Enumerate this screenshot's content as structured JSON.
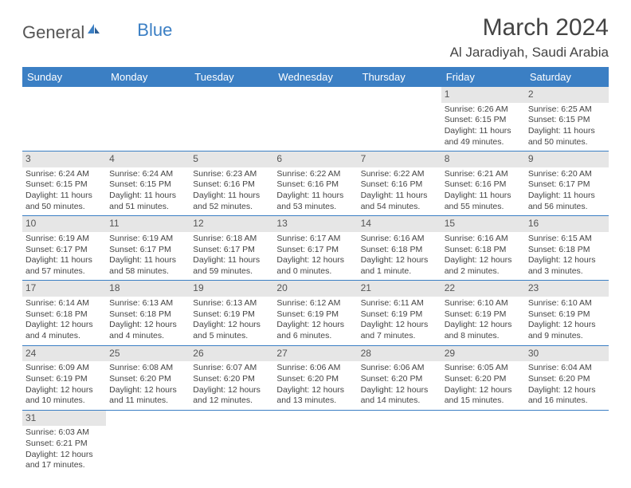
{
  "logo": {
    "text1": "General",
    "text2": "Blue"
  },
  "title": "March 2024",
  "location": "Al Jaradiyah, Saudi Arabia",
  "columns": [
    "Sunday",
    "Monday",
    "Tuesday",
    "Wednesday",
    "Thursday",
    "Friday",
    "Saturday"
  ],
  "colors": {
    "header_bg": "#3b7fc4",
    "header_text": "#ffffff",
    "daynum_bg": "#e6e6e6",
    "border": "#3b7fc4",
    "text": "#444444"
  },
  "fonts": {
    "title_size": 30,
    "location_size": 17,
    "col_header_size": 13,
    "daynum_size": 12,
    "body_size": 10.5
  },
  "weeks": [
    [
      null,
      null,
      null,
      null,
      null,
      {
        "n": "1",
        "sr": "Sunrise: 6:26 AM",
        "ss": "Sunset: 6:15 PM",
        "dl": "Daylight: 11 hours and 49 minutes."
      },
      {
        "n": "2",
        "sr": "Sunrise: 6:25 AM",
        "ss": "Sunset: 6:15 PM",
        "dl": "Daylight: 11 hours and 50 minutes."
      }
    ],
    [
      {
        "n": "3",
        "sr": "Sunrise: 6:24 AM",
        "ss": "Sunset: 6:15 PM",
        "dl": "Daylight: 11 hours and 50 minutes."
      },
      {
        "n": "4",
        "sr": "Sunrise: 6:24 AM",
        "ss": "Sunset: 6:15 PM",
        "dl": "Daylight: 11 hours and 51 minutes."
      },
      {
        "n": "5",
        "sr": "Sunrise: 6:23 AM",
        "ss": "Sunset: 6:16 PM",
        "dl": "Daylight: 11 hours and 52 minutes."
      },
      {
        "n": "6",
        "sr": "Sunrise: 6:22 AM",
        "ss": "Sunset: 6:16 PM",
        "dl": "Daylight: 11 hours and 53 minutes."
      },
      {
        "n": "7",
        "sr": "Sunrise: 6:22 AM",
        "ss": "Sunset: 6:16 PM",
        "dl": "Daylight: 11 hours and 54 minutes."
      },
      {
        "n": "8",
        "sr": "Sunrise: 6:21 AM",
        "ss": "Sunset: 6:16 PM",
        "dl": "Daylight: 11 hours and 55 minutes."
      },
      {
        "n": "9",
        "sr": "Sunrise: 6:20 AM",
        "ss": "Sunset: 6:17 PM",
        "dl": "Daylight: 11 hours and 56 minutes."
      }
    ],
    [
      {
        "n": "10",
        "sr": "Sunrise: 6:19 AM",
        "ss": "Sunset: 6:17 PM",
        "dl": "Daylight: 11 hours and 57 minutes."
      },
      {
        "n": "11",
        "sr": "Sunrise: 6:19 AM",
        "ss": "Sunset: 6:17 PM",
        "dl": "Daylight: 11 hours and 58 minutes."
      },
      {
        "n": "12",
        "sr": "Sunrise: 6:18 AM",
        "ss": "Sunset: 6:17 PM",
        "dl": "Daylight: 11 hours and 59 minutes."
      },
      {
        "n": "13",
        "sr": "Sunrise: 6:17 AM",
        "ss": "Sunset: 6:17 PM",
        "dl": "Daylight: 12 hours and 0 minutes."
      },
      {
        "n": "14",
        "sr": "Sunrise: 6:16 AM",
        "ss": "Sunset: 6:18 PM",
        "dl": "Daylight: 12 hours and 1 minute."
      },
      {
        "n": "15",
        "sr": "Sunrise: 6:16 AM",
        "ss": "Sunset: 6:18 PM",
        "dl": "Daylight: 12 hours and 2 minutes."
      },
      {
        "n": "16",
        "sr": "Sunrise: 6:15 AM",
        "ss": "Sunset: 6:18 PM",
        "dl": "Daylight: 12 hours and 3 minutes."
      }
    ],
    [
      {
        "n": "17",
        "sr": "Sunrise: 6:14 AM",
        "ss": "Sunset: 6:18 PM",
        "dl": "Daylight: 12 hours and 4 minutes."
      },
      {
        "n": "18",
        "sr": "Sunrise: 6:13 AM",
        "ss": "Sunset: 6:18 PM",
        "dl": "Daylight: 12 hours and 4 minutes."
      },
      {
        "n": "19",
        "sr": "Sunrise: 6:13 AM",
        "ss": "Sunset: 6:19 PM",
        "dl": "Daylight: 12 hours and 5 minutes."
      },
      {
        "n": "20",
        "sr": "Sunrise: 6:12 AM",
        "ss": "Sunset: 6:19 PM",
        "dl": "Daylight: 12 hours and 6 minutes."
      },
      {
        "n": "21",
        "sr": "Sunrise: 6:11 AM",
        "ss": "Sunset: 6:19 PM",
        "dl": "Daylight: 12 hours and 7 minutes."
      },
      {
        "n": "22",
        "sr": "Sunrise: 6:10 AM",
        "ss": "Sunset: 6:19 PM",
        "dl": "Daylight: 12 hours and 8 minutes."
      },
      {
        "n": "23",
        "sr": "Sunrise: 6:10 AM",
        "ss": "Sunset: 6:19 PM",
        "dl": "Daylight: 12 hours and 9 minutes."
      }
    ],
    [
      {
        "n": "24",
        "sr": "Sunrise: 6:09 AM",
        "ss": "Sunset: 6:19 PM",
        "dl": "Daylight: 12 hours and 10 minutes."
      },
      {
        "n": "25",
        "sr": "Sunrise: 6:08 AM",
        "ss": "Sunset: 6:20 PM",
        "dl": "Daylight: 12 hours and 11 minutes."
      },
      {
        "n": "26",
        "sr": "Sunrise: 6:07 AM",
        "ss": "Sunset: 6:20 PM",
        "dl": "Daylight: 12 hours and 12 minutes."
      },
      {
        "n": "27",
        "sr": "Sunrise: 6:06 AM",
        "ss": "Sunset: 6:20 PM",
        "dl": "Daylight: 12 hours and 13 minutes."
      },
      {
        "n": "28",
        "sr": "Sunrise: 6:06 AM",
        "ss": "Sunset: 6:20 PM",
        "dl": "Daylight: 12 hours and 14 minutes."
      },
      {
        "n": "29",
        "sr": "Sunrise: 6:05 AM",
        "ss": "Sunset: 6:20 PM",
        "dl": "Daylight: 12 hours and 15 minutes."
      },
      {
        "n": "30",
        "sr": "Sunrise: 6:04 AM",
        "ss": "Sunset: 6:20 PM",
        "dl": "Daylight: 12 hours and 16 minutes."
      }
    ],
    [
      {
        "n": "31",
        "sr": "Sunrise: 6:03 AM",
        "ss": "Sunset: 6:21 PM",
        "dl": "Daylight: 12 hours and 17 minutes."
      },
      null,
      null,
      null,
      null,
      null,
      null
    ]
  ]
}
